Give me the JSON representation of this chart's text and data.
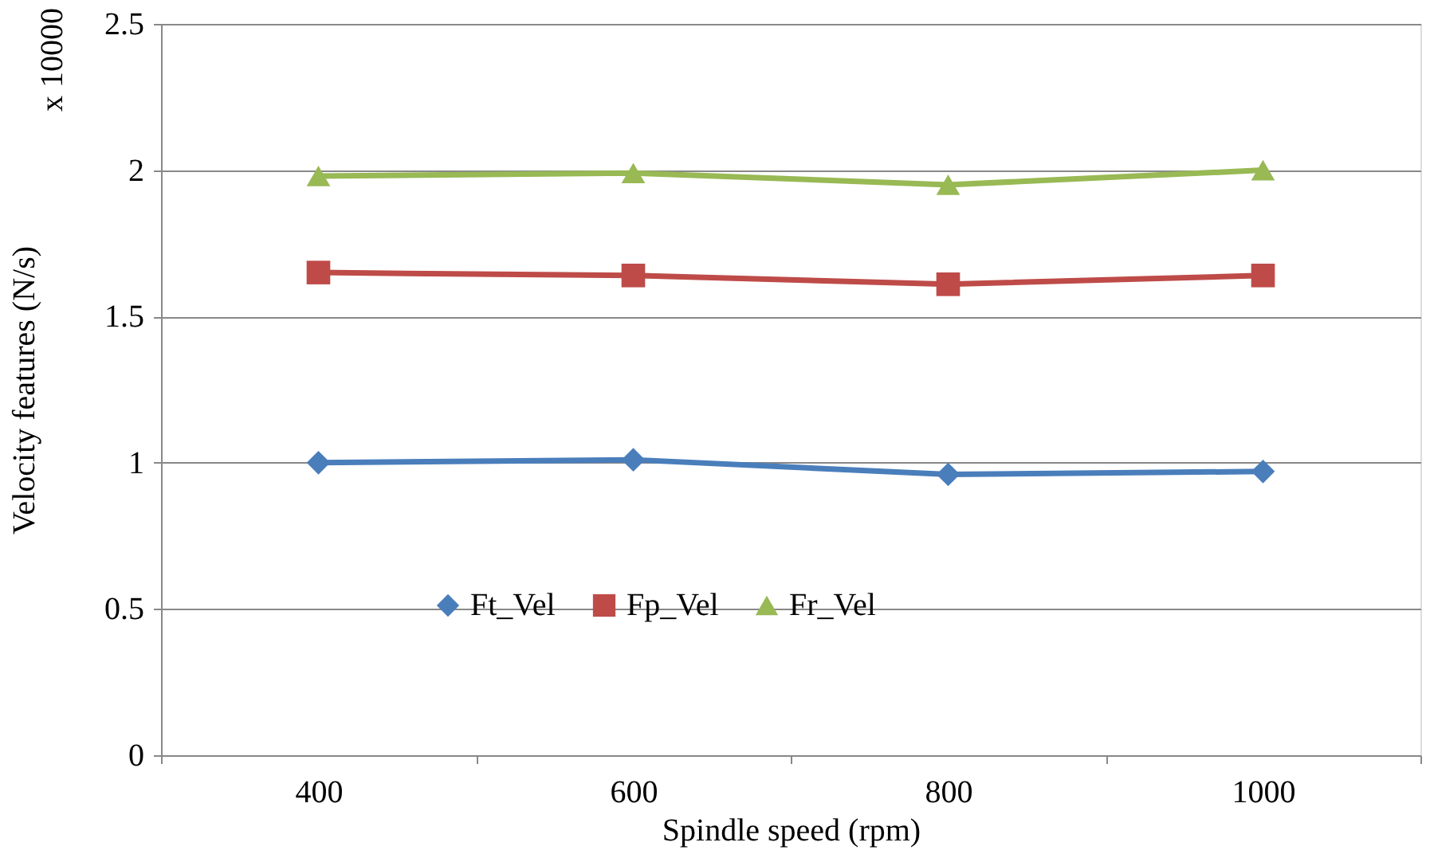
{
  "chart_data": {
    "type": "line",
    "xlabel": "Spindle speed (rpm)",
    "ylabel": "Velocity features (N/s)",
    "annotations": [
      "x 10000"
    ],
    "categories": [
      "400",
      "600",
      "800",
      "1000"
    ],
    "series": [
      {
        "name": "Ft_Vel",
        "color": "#4a7ebb",
        "marker": "diamond",
        "values": [
          1.0,
          1.01,
          0.96,
          0.97
        ]
      },
      {
        "name": "Fp_Vel",
        "color": "#be4b48",
        "marker": "square",
        "values": [
          1.65,
          1.64,
          1.61,
          1.64
        ]
      },
      {
        "name": "Fr_Vel",
        "color": "#98b954",
        "marker": "triangle",
        "values": [
          1.98,
          1.99,
          1.95,
          2.0
        ]
      }
    ],
    "ylim": [
      0,
      2.5
    ],
    "yticks": [
      0,
      0.5,
      1,
      1.5,
      2,
      2.5
    ],
    "grid": "y",
    "legend": "bottom"
  }
}
